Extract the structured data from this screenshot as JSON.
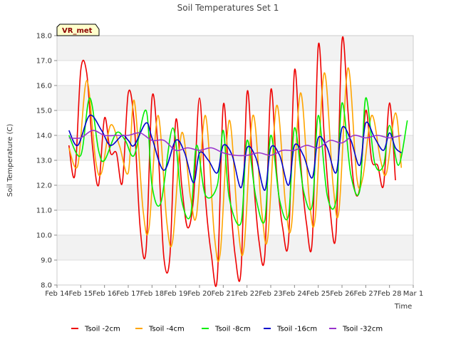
{
  "chart_data": {
    "type": "line",
    "title": "Soil Temperatures Set 1",
    "xlabel": "Time",
    "ylabel": "Soil Temperature (C)",
    "ylim": [
      8.0,
      18.0
    ],
    "xlim": [
      "Feb 14",
      "Mar 1"
    ],
    "y_ticks": [
      "8.0",
      "9.0",
      "10.0",
      "11.0",
      "12.0",
      "13.0",
      "14.0",
      "15.0",
      "16.0",
      "17.0",
      "18.0"
    ],
    "x_ticks": [
      "Feb 14",
      "Feb 15",
      "Feb 16",
      "Feb 17",
      "Feb 18",
      "Feb 19",
      "Feb 20",
      "Feb 21",
      "Feb 22",
      "Feb 23",
      "Feb 24",
      "Feb 25",
      "Feb 26",
      "Feb 27",
      "Feb 28",
      "Mar 1"
    ],
    "grid": "horizontal bands",
    "legend_position": "bottom",
    "badge": "VR_met",
    "series": [
      {
        "name": "Tsoil -2cm",
        "color": "#ee0000",
        "x": [
          "Feb 14 12:00",
          "Feb 14 18:00",
          "Feb 15 00:00",
          "Feb 15 06:00",
          "Feb 15 12:00",
          "Feb 15 18:00",
          "Feb 16 00:00",
          "Feb 16 06:00",
          "Feb 16 12:00",
          "Feb 16 18:00",
          "Feb 17 00:00",
          "Feb 17 06:00",
          "Feb 17 12:00",
          "Feb 17 18:00",
          "Feb 18 00:00",
          "Feb 18 06:00",
          "Feb 18 12:00",
          "Feb 18 18:00",
          "Feb 19 00:00",
          "Feb 19 06:00",
          "Feb 19 12:00",
          "Feb 19 18:00",
          "Feb 20 00:00",
          "Feb 20 06:00",
          "Feb 20 12:00",
          "Feb 20 18:00",
          "Feb 21 00:00",
          "Feb 21 06:00",
          "Feb 21 12:00",
          "Feb 21 18:00",
          "Feb 22 00:00",
          "Feb 22 06:00",
          "Feb 22 12:00",
          "Feb 22 18:00",
          "Feb 23 00:00",
          "Feb 23 06:00",
          "Feb 23 12:00",
          "Feb 23 18:00",
          "Feb 24 00:00",
          "Feb 24 06:00",
          "Feb 24 12:00",
          "Feb 24 18:00",
          "Feb 25 00:00",
          "Feb 25 06:00",
          "Feb 25 12:00",
          "Feb 25 18:00",
          "Feb 26 00:00",
          "Feb 26 06:00",
          "Feb 26 12:00",
          "Feb 26 18:00",
          "Feb 27 00:00",
          "Feb 27 06:00",
          "Feb 27 12:00",
          "Feb 27 18:00",
          "Feb 28 00:00",
          "Feb 28 06:00"
        ],
        "values": [
          13.6,
          12.4,
          16.6,
          16.5,
          13.5,
          12.0,
          14.7,
          13.3,
          13.3,
          12.1,
          15.7,
          14.5,
          10.3,
          9.4,
          15.5,
          13.5,
          9.1,
          9.1,
          14.6,
          12.0,
          10.3,
          11.5,
          15.5,
          11.5,
          9.2,
          8.3,
          15.2,
          12.0,
          9.2,
          8.6,
          15.7,
          12.5,
          9.8,
          9.2,
          15.8,
          12.5,
          10.3,
          9.8,
          16.6,
          13.0,
          10.5,
          9.8,
          17.6,
          14.0,
          11.0,
          10.1,
          17.8,
          15.0,
          12.0,
          11.9,
          15.0,
          13.0,
          12.8,
          12.0,
          15.3,
          12.2
        ]
      },
      {
        "name": "Tsoil -4cm",
        "color": "#ffa500",
        "x": [
          "Feb 14 12:00",
          "Feb 14 21:00",
          "Feb 15 06:00",
          "Feb 15 15:00",
          "Feb 15 21:00",
          "Feb 16 06:00",
          "Feb 16 15:00",
          "Feb 17 00:00",
          "Feb 17 06:00",
          "Feb 17 15:00",
          "Feb 17 21:00",
          "Feb 18 06:00",
          "Feb 18 15:00",
          "Feb 18 21:00",
          "Feb 19 06:00",
          "Feb 19 15:00",
          "Feb 19 21:00",
          "Feb 20 06:00",
          "Feb 20 15:00",
          "Feb 20 21:00",
          "Feb 21 06:00",
          "Feb 21 15:00",
          "Feb 21 21:00",
          "Feb 22 06:00",
          "Feb 22 15:00",
          "Feb 22 21:00",
          "Feb 23 06:00",
          "Feb 23 15:00",
          "Feb 23 21:00",
          "Feb 24 06:00",
          "Feb 24 15:00",
          "Feb 24 21:00",
          "Feb 25 06:00",
          "Feb 25 15:00",
          "Feb 25 21:00",
          "Feb 26 06:00",
          "Feb 26 15:00",
          "Feb 26 21:00",
          "Feb 27 06:00",
          "Feb 27 15:00",
          "Feb 27 21:00",
          "Feb 28 06:00",
          "Feb 28 12:00"
        ],
        "values": [
          13.5,
          12.8,
          16.2,
          13.0,
          12.5,
          14.4,
          13.6,
          12.5,
          15.4,
          11.0,
          10.3,
          14.8,
          10.5,
          9.8,
          14.1,
          11.5,
          10.8,
          14.8,
          10.0,
          9.3,
          14.6,
          10.3,
          9.5,
          14.8,
          10.9,
          9.9,
          15.2,
          11.2,
          10.4,
          15.7,
          11.4,
          10.7,
          16.5,
          12.0,
          11.0,
          16.7,
          12.3,
          12.3,
          14.8,
          13.0,
          12.5,
          14.9,
          12.7
        ]
      },
      {
        "name": "Tsoil -8cm",
        "color": "#00ee00",
        "x": [
          "Feb 14 12:00",
          "Feb 15 00:00",
          "Feb 15 09:00",
          "Feb 15 18:00",
          "Feb 16 00:00",
          "Feb 16 12:00",
          "Feb 16 21:00",
          "Feb 17 06:00",
          "Feb 17 18:00",
          "Feb 18 00:00",
          "Feb 18 09:00",
          "Feb 18 21:00",
          "Feb 19 06:00",
          "Feb 19 15:00",
          "Feb 19 21:00",
          "Feb 20 06:00",
          "Feb 20 18:00",
          "Feb 21 00:00",
          "Feb 21 06:00",
          "Feb 21 18:00",
          "Feb 22 00:00",
          "Feb 22 09:00",
          "Feb 22 18:00",
          "Feb 23 00:00",
          "Feb 23 09:00",
          "Feb 23 18:00",
          "Feb 24 00:00",
          "Feb 24 09:00",
          "Feb 24 18:00",
          "Feb 25 00:00",
          "Feb 25 09:00",
          "Feb 25 18:00",
          "Feb 26 00:00",
          "Feb 26 09:00",
          "Feb 26 18:00",
          "Feb 27 00:00",
          "Feb 27 09:00",
          "Feb 27 18:00",
          "Feb 28 00:00",
          "Feb 28 09:00",
          "Feb 28 18:00"
        ],
        "values": [
          14.0,
          13.2,
          15.5,
          13.4,
          13.0,
          14.1,
          13.8,
          13.2,
          15.0,
          12.0,
          11.3,
          14.3,
          11.4,
          10.8,
          13.6,
          11.6,
          12.0,
          14.2,
          11.5,
          10.5,
          13.8,
          11.5,
          10.6,
          14.0,
          11.4,
          10.8,
          14.3,
          11.8,
          11.2,
          14.8,
          11.6,
          11.4,
          15.3,
          12.4,
          11.8,
          15.5,
          12.9,
          12.8,
          14.4,
          12.8,
          14.6
        ]
      },
      {
        "name": "Tsoil -16cm",
        "color": "#0000cc",
        "x": [
          "Feb 14 12:00",
          "Feb 14 21:00",
          "Feb 15 09:00",
          "Feb 15 21:00",
          "Feb 16 06:00",
          "Feb 16 18:00",
          "Feb 17 00:00",
          "Feb 17 06:00",
          "Feb 17 18:00",
          "Feb 18 00:00",
          "Feb 18 12:00",
          "Feb 19 00:00",
          "Feb 19 09:00",
          "Feb 19 18:00",
          "Feb 20 00:00",
          "Feb 20 09:00",
          "Feb 20 18:00",
          "Feb 21 00:00",
          "Feb 21 09:00",
          "Feb 21 18:00",
          "Feb 22 00:00",
          "Feb 22 09:00",
          "Feb 22 18:00",
          "Feb 23 00:00",
          "Feb 23 09:00",
          "Feb 23 18:00",
          "Feb 24 00:00",
          "Feb 24 09:00",
          "Feb 24 18:00",
          "Feb 25 00:00",
          "Feb 25 09:00",
          "Feb 25 18:00",
          "Feb 26 00:00",
          "Feb 26 09:00",
          "Feb 26 18:00",
          "Feb 27 00:00",
          "Feb 27 09:00",
          "Feb 27 18:00",
          "Feb 28 00:00",
          "Feb 28 06:00",
          "Feb 28 12:00"
        ],
        "values": [
          14.2,
          13.6,
          14.8,
          14.2,
          13.6,
          14.0,
          13.8,
          13.6,
          14.5,
          13.9,
          12.6,
          13.8,
          13.3,
          12.1,
          13.3,
          13.0,
          12.5,
          13.6,
          13.2,
          11.9,
          13.5,
          13.1,
          11.8,
          13.5,
          13.2,
          12.0,
          13.6,
          13.2,
          12.3,
          13.9,
          13.5,
          12.5,
          14.3,
          13.8,
          12.8,
          14.5,
          13.9,
          13.4,
          14.1,
          13.5,
          13.3
        ]
      },
      {
        "name": "Tsoil -32cm",
        "color": "#9933cc",
        "x": [
          "Feb 14 12:00",
          "Feb 15 00:00",
          "Feb 15 12:00",
          "Feb 16 00:00",
          "Feb 16 12:00",
          "Feb 17 00:00",
          "Feb 17 12:00",
          "Feb 18 00:00",
          "Feb 18 12:00",
          "Feb 19 00:00",
          "Feb 19 12:00",
          "Feb 20 00:00",
          "Feb 20 12:00",
          "Feb 21 00:00",
          "Feb 21 12:00",
          "Feb 22 00:00",
          "Feb 22 12:00",
          "Feb 23 00:00",
          "Feb 23 12:00",
          "Feb 24 00:00",
          "Feb 24 12:00",
          "Feb 25 00:00",
          "Feb 25 12:00",
          "Feb 26 00:00",
          "Feb 26 12:00",
          "Feb 27 00:00",
          "Feb 27 12:00",
          "Feb 28 00:00",
          "Feb 28 12:00"
        ],
        "values": [
          13.9,
          13.9,
          14.2,
          14.0,
          14.0,
          14.0,
          14.1,
          13.8,
          13.8,
          13.4,
          13.5,
          13.4,
          13.5,
          13.3,
          13.2,
          13.2,
          13.3,
          13.2,
          13.4,
          13.4,
          13.6,
          13.5,
          13.8,
          13.7,
          14.0,
          13.9,
          14.0,
          13.9,
          14.0
        ]
      }
    ]
  }
}
